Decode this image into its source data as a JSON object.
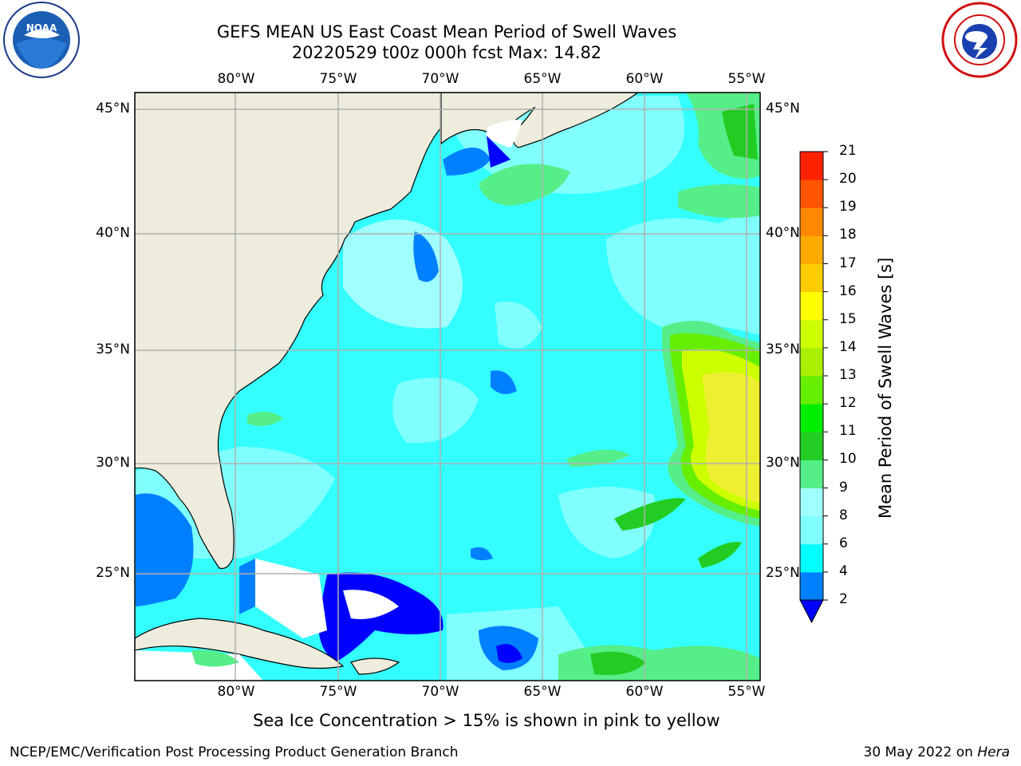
{
  "title": {
    "line1": "GEFS MEAN US East Coast Mean Period of Swell Waves",
    "line2": "20220529 t00z 000h fcst   Max: 14.82"
  },
  "map": {
    "lon_labels": [
      "80°W",
      "75°W",
      "70°W",
      "65°W",
      "60°W",
      "55°W"
    ],
    "lat_labels": [
      "45°N",
      "40°N",
      "35°N",
      "30°N",
      "25°N"
    ],
    "extent": {
      "lon_min": -85,
      "lon_max": -54.6,
      "lat_min": 20.3,
      "lat_max": 45.8
    },
    "land_color": "#eeecdc",
    "ocean_base_color": "#33ffff",
    "gridline_color": "#b0b0b0"
  },
  "colorbar": {
    "label": "Mean Period of Swell Waves [s]",
    "ticks": [
      "2",
      "4",
      "6",
      "8",
      "9",
      "10",
      "11",
      "12",
      "13",
      "14",
      "15",
      "16",
      "17",
      "18",
      "19",
      "20",
      "21"
    ],
    "colors": [
      "#0000ff",
      "#0080ff",
      "#00ffff",
      "#80ffff",
      "#a0ffff",
      "#55ee88",
      "#22cc22",
      "#00ee00",
      "#66ee00",
      "#aaee00",
      "#ccff00",
      "#ffff00",
      "#ffcc00",
      "#ffaa00",
      "#ff8800",
      "#ff5500",
      "#ff2200",
      "#ff0000"
    ],
    "extend_min_color": "#0000ff"
  },
  "note": "Sea Ice Concentration > 15% is shown in pink to yellow",
  "footer": {
    "left": "NCEP/EMC/Verification Post Processing Product Generation Branch",
    "right_prefix": "30 May 2022 on ",
    "right_machine": "Hera"
  },
  "logos": {
    "left": "noaa-logo",
    "right": "national-weather-service-logo"
  }
}
